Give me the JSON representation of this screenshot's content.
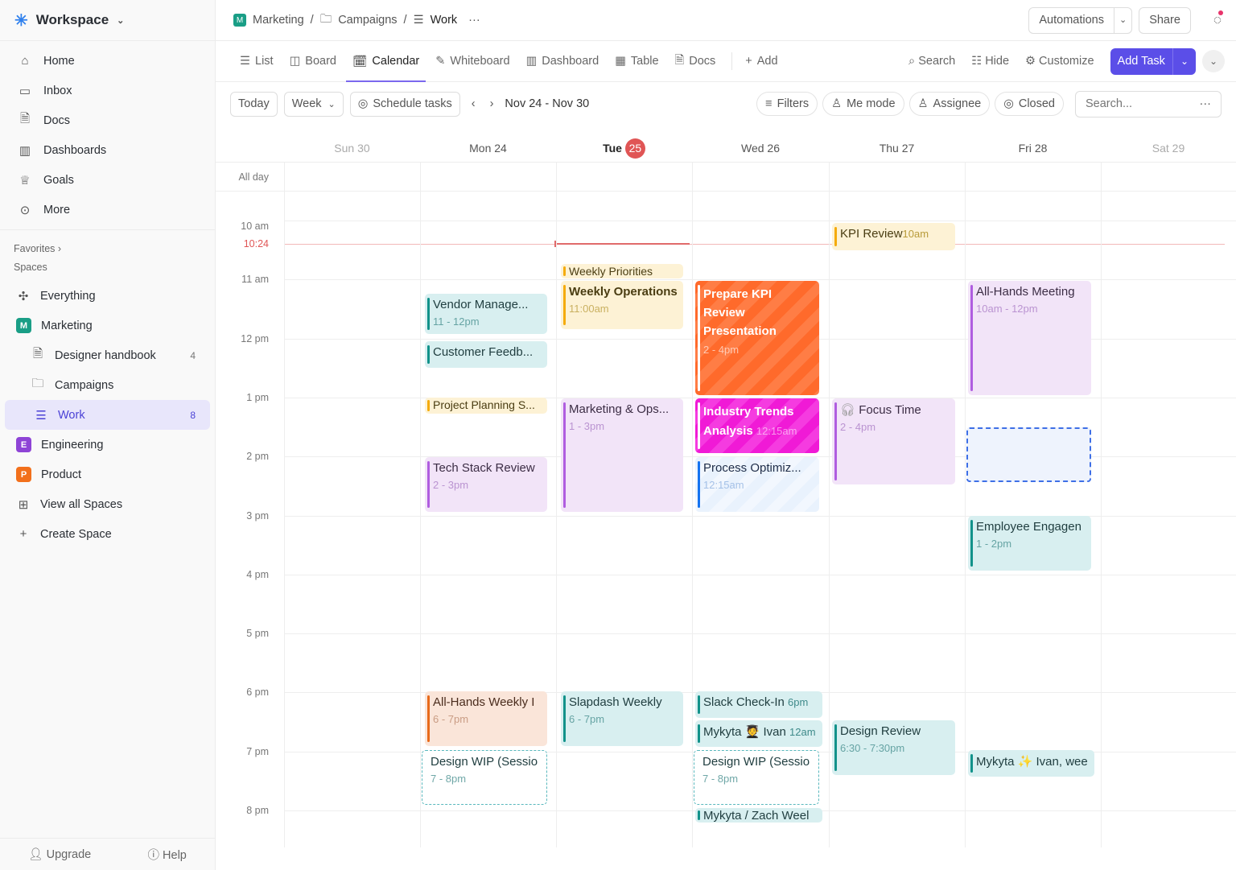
{
  "workspace": {
    "name": "Workspace"
  },
  "nav": [
    {
      "label": "Home",
      "icon": "home-icon"
    },
    {
      "label": "Inbox",
      "icon": "inbox-icon"
    },
    {
      "label": "Docs",
      "icon": "doc-icon"
    },
    {
      "label": "Dashboards",
      "icon": "dashboard-icon"
    },
    {
      "label": "Goals",
      "icon": "trophy-icon"
    },
    {
      "label": "More",
      "icon": "more-icon"
    }
  ],
  "favorites_label": "Favorites",
  "spaces_label": "Spaces",
  "spaces": [
    {
      "label": "Everything"
    },
    {
      "label": "Marketing",
      "badge": "M",
      "color": "#1a9e86"
    },
    {
      "label": "Designer handbook",
      "count": "4"
    },
    {
      "label": "Campaigns"
    },
    {
      "label": "Work",
      "count": "8"
    },
    {
      "label": "Engineering",
      "badge": "E",
      "color": "#8e44d6"
    },
    {
      "label": "Product",
      "badge": "P",
      "color": "#f2701c"
    },
    {
      "label": "View all Spaces"
    },
    {
      "label": "Create Space"
    }
  ],
  "footer": {
    "upgrade": "Upgrade",
    "help": "Help"
  },
  "breadcrumb": {
    "badge": "M",
    "items": [
      "Marketing",
      "Campaigns",
      "Work"
    ]
  },
  "header": {
    "automations": "Automations",
    "share": "Share"
  },
  "tabs": [
    "List",
    "Board",
    "Calendar",
    "Whiteboard",
    "Dashboard",
    "Table",
    "Docs",
    "Add"
  ],
  "actions": {
    "search": "Search",
    "hide": "Hide",
    "customize": "Customize",
    "add_task": "Add Task"
  },
  "toolbar": {
    "today": "Today",
    "week": "Week",
    "schedule": "Schedule tasks",
    "range": "Nov 24 - Nov 30",
    "filters": "Filters",
    "me_mode": "Me mode",
    "assignee": "Assignee",
    "closed": "Closed",
    "search_placeholder": "Search..."
  },
  "days": [
    {
      "name": "Sun",
      "num": "30"
    },
    {
      "name": "Mon",
      "num": "24"
    },
    {
      "name": "Tue",
      "num": "25",
      "today": true
    },
    {
      "name": "Wed",
      "num": "26"
    },
    {
      "name": "Thu",
      "num": "27"
    },
    {
      "name": "Fri",
      "num": "28"
    },
    {
      "name": "Sat",
      "num": "29"
    }
  ],
  "all_day": "All day",
  "times": [
    "10 am",
    "11 am",
    "12 pm",
    "1 pm",
    "2 pm",
    "3 pm",
    "4 pm",
    "5 pm",
    "6 pm",
    "7 pm",
    "8 pm"
  ],
  "now": "10:24",
  "events": {
    "vendor": {
      "title": "Vendor Manage...",
      "time": "11 - 12pm"
    },
    "customer": {
      "title": "Customer Feedb..."
    },
    "project": {
      "title": "Project Planning S..."
    },
    "tech": {
      "title": "Tech Stack Review",
      "time": "2 - 3pm"
    },
    "allhands_weekly": {
      "title": "All-Hands Weekly I",
      "time": "6 - 7pm"
    },
    "wip_mon": {
      "title": "Design WIP (Sessio",
      "time": "7 - 8pm"
    },
    "priorities": {
      "title": "Weekly Priorities"
    },
    "operations": {
      "title": "Weekly Operations",
      "time": "11:00am"
    },
    "mktops": {
      "title": "Marketing & Ops...",
      "time": "1 - 3pm"
    },
    "slapdash": {
      "title": "Slapdash Weekly",
      "time": "6 - 7pm"
    },
    "kpi_prep": {
      "title": "Prepare KPI Review Presentation",
      "time": "2 - 4pm"
    },
    "industry": {
      "title": "Industry Trends Analysis",
      "time": "12:15am"
    },
    "process": {
      "title": "Process Optimiz...",
      "time": "12:15am"
    },
    "slack": {
      "title": "Slack Check-In",
      "time": "6pm"
    },
    "mykyta_ivan": {
      "title": "Mykyta 🧑‍🎓 Ivan",
      "time": "12am"
    },
    "wip_wed": {
      "title": "Design WIP (Sessio",
      "time": "7 - 8pm"
    },
    "mykyta_zach": {
      "title": "Mykyta / Zach Weel"
    },
    "kpi_review": {
      "title": "KPI Review",
      "time": "10am"
    },
    "focus": {
      "title": "Focus Time",
      "time": "2 - 4pm"
    },
    "design_review": {
      "title": "Design Review",
      "time": "6:30 - 7:30pm"
    },
    "allhands_meeting": {
      "title": "All-Hands Meeting",
      "time": "10am - 12pm"
    },
    "employee": {
      "title": "Employee Engagen",
      "time": "1 - 2pm"
    },
    "mykyta_ivan_fri": {
      "title": "Mykyta ✨ Ivan, wee"
    }
  },
  "colors": {
    "accent": "#7b68ee",
    "add_task": "#5b4ee8",
    "today": "#e05555",
    "now_line": "#e06a6a"
  }
}
